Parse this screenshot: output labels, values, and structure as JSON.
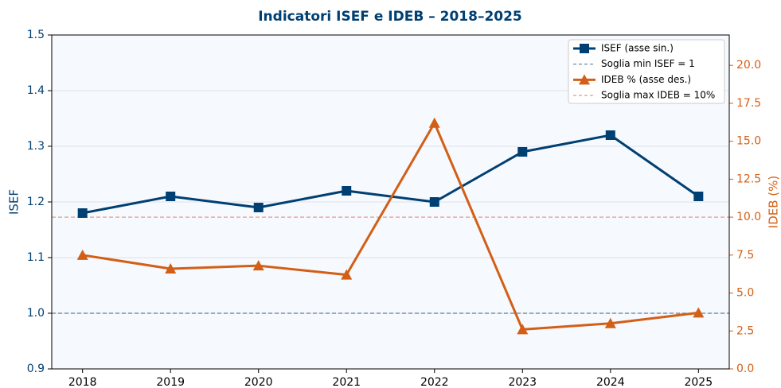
{
  "chart_data": {
    "type": "line",
    "title": "Indicatori ISEF e IDEB – 2018–2025",
    "x": [
      2018,
      2019,
      2020,
      2021,
      2022,
      2023,
      2024,
      2025
    ],
    "xlim": [
      2017.65,
      2025.35
    ],
    "xticks": [
      2018,
      2019,
      2020,
      2021,
      2022,
      2023,
      2024,
      2025
    ],
    "ylabel": "ISEF",
    "y2label": "IDEB (%)",
    "ylim": [
      0.9,
      1.5
    ],
    "yticks": [
      0.9,
      {
        "value": 1,
        "label": "1.0"
      },
      1.1,
      1.2,
      1.3,
      1.4,
      1.5
    ],
    "y2lim": [
      0,
      22
    ],
    "y2ticks": [
      {
        "value": 0,
        "label": "0.0"
      },
      2.5,
      {
        "value": 5,
        "label": "5.0"
      },
      7.5,
      {
        "value": 10,
        "label": "10.0"
      },
      12.5,
      {
        "value": 15,
        "label": "15.0"
      },
      17.5,
      {
        "value": 20,
        "label": "20.0"
      }
    ],
    "grid": true,
    "legend": "upper right",
    "series": [
      {
        "name": "ISEF (asse sin.)",
        "color": "#003f72",
        "marker": "square",
        "axis": "y",
        "values": [
          1.18,
          1.21,
          1.19,
          1.22,
          1.2,
          1.29,
          1.32,
          1.21
        ]
      },
      {
        "name": "IDEB % (asse des.)",
        "color": "#d35f16",
        "marker": "triangle",
        "axis": "y2",
        "values": [
          7.5,
          6.6,
          6.8,
          6.2,
          16.2,
          2.6,
          3.0,
          3.7
        ]
      }
    ],
    "reference_lines": [
      {
        "name": "Soglia min ISEF = 1",
        "value": 1,
        "axis": "y",
        "color": "#5b7f9e"
      },
      {
        "name": "Soglia max IDEB = 10%",
        "value": 10,
        "axis": "y2",
        "color": "#e89a86"
      }
    ]
  }
}
